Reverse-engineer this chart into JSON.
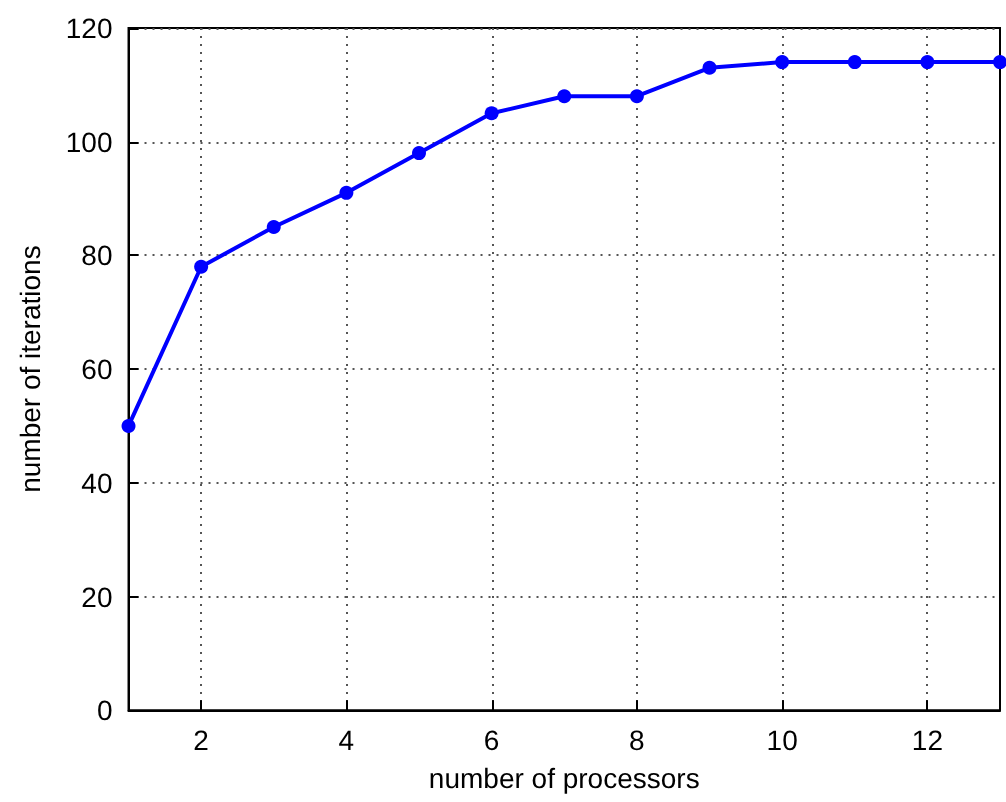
{
  "chart_data": {
    "type": "line",
    "xlabel": "number of processors",
    "ylabel": "number of iterations",
    "x": [
      1,
      2,
      3,
      4,
      5,
      6,
      7,
      8,
      9,
      10,
      11,
      12,
      13
    ],
    "series": [
      {
        "color": "#0000ff",
        "values": [
          50,
          78,
          85,
          91,
          98,
          105,
          108,
          108,
          113,
          114,
          114,
          114,
          114
        ]
      }
    ],
    "xlim": [
      1,
      13
    ],
    "xticks": [
      2,
      4,
      6,
      8,
      10,
      12
    ],
    "ylim": [
      0,
      120
    ],
    "yticks": [
      0,
      20,
      40,
      60,
      80,
      100,
      120
    ],
    "grid": true,
    "marker": "circle",
    "line_style": "solid"
  }
}
